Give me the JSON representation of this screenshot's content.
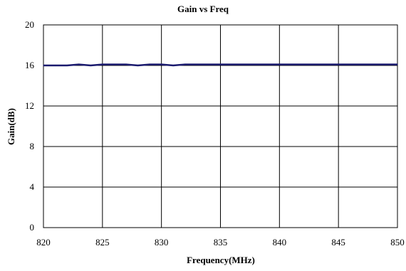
{
  "chart_data": {
    "type": "line",
    "title": "Gain vs Freq",
    "xlabel": "Frequency(MHz)",
    "ylabel": "Gain(dB)",
    "xlim": [
      820,
      850
    ],
    "ylim": [
      0,
      20
    ],
    "x_ticks": [
      "820",
      "825",
      "830",
      "835",
      "840",
      "845",
      "850"
    ],
    "y_ticks": [
      "0",
      "4",
      "8",
      "12",
      "16",
      "20"
    ],
    "grid": true,
    "legend": "none",
    "series": [
      {
        "color": "#1a1a6e",
        "x": [
          820,
          821,
          822,
          823,
          824,
          825,
          826,
          827,
          828,
          829,
          830,
          831,
          832,
          833,
          834,
          835,
          836,
          837,
          838,
          839,
          840,
          841,
          842,
          843,
          844,
          845,
          846,
          847,
          848,
          849,
          850
        ],
        "y": [
          16.0,
          16.0,
          16.0,
          16.1,
          16.0,
          16.1,
          16.1,
          16.1,
          16.0,
          16.1,
          16.1,
          16.0,
          16.1,
          16.1,
          16.1,
          16.1,
          16.1,
          16.1,
          16.1,
          16.1,
          16.1,
          16.1,
          16.1,
          16.1,
          16.1,
          16.1,
          16.1,
          16.1,
          16.1,
          16.1,
          16.1
        ]
      }
    ]
  }
}
